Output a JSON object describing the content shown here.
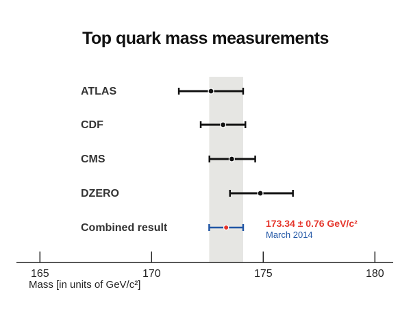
{
  "chart_data": {
    "type": "scatter",
    "title": "Top quark mass measurements",
    "xlabel": "Mass [in units of GeV/c²]",
    "xlim": [
      164,
      181
    ],
    "xticks": [
      165,
      170,
      175,
      180
    ],
    "xtick_labels": [
      "165",
      "170",
      "175",
      "180"
    ],
    "series": [
      {
        "name": "ATLAS",
        "value": 172.66,
        "low": 171.22,
        "high": 174.1,
        "color": "#111111"
      },
      {
        "name": "CDF",
        "value": 173.2,
        "low": 172.2,
        "high": 174.2,
        "color": "#111111"
      },
      {
        "name": "CMS",
        "value": 173.59,
        "low": 172.59,
        "high": 174.64,
        "color": "#111111"
      },
      {
        "name": "DZERO",
        "value": 174.87,
        "low": 173.51,
        "high": 176.33,
        "color": "#111111"
      },
      {
        "name": "Combined result",
        "value": 173.34,
        "low": 172.58,
        "high": 174.1,
        "color": "#2156a5",
        "point_color": "#e5352b"
      }
    ],
    "band": {
      "low": 172.58,
      "high": 174.1,
      "color": "#e6e6e3"
    },
    "annotation": {
      "value_text": "173.34 ± 0.76 GeV/c²",
      "date_text": "March 2014",
      "value_color": "#e5352b",
      "date_color": "#2156a5"
    }
  }
}
